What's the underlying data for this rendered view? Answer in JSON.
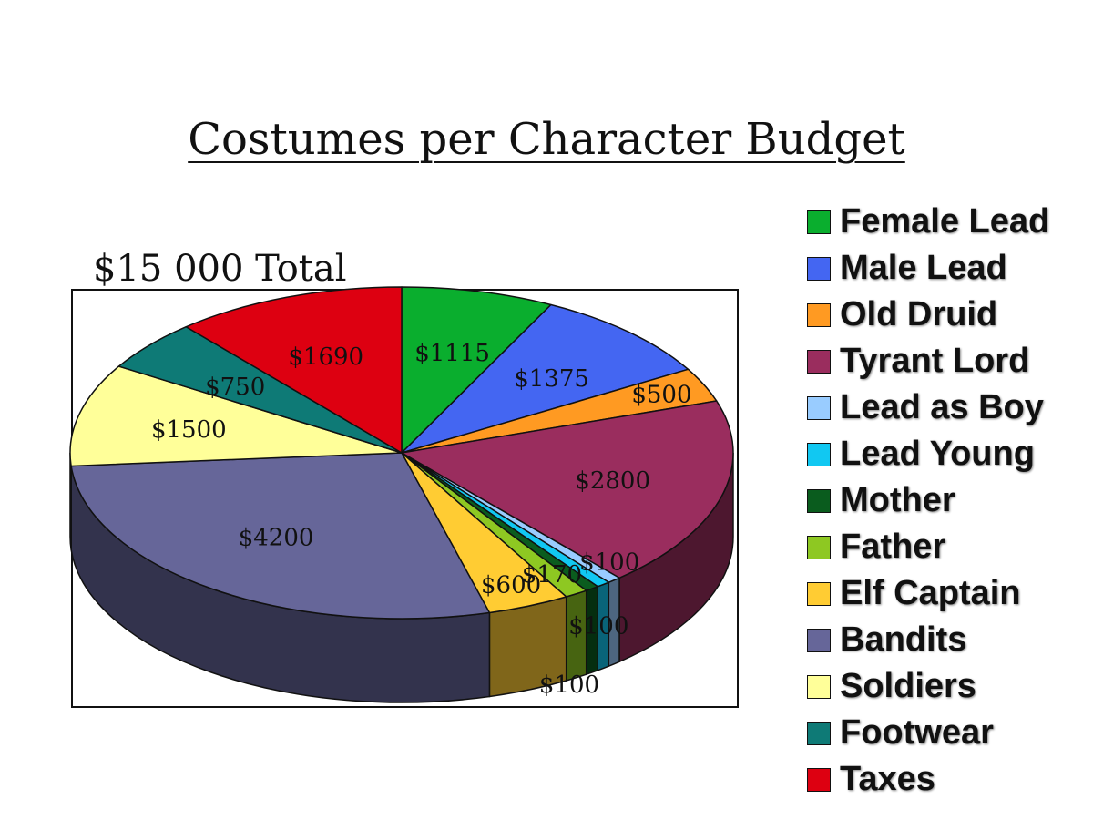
{
  "chart_data": {
    "type": "pie",
    "title": "Costumes per Character Budget",
    "subtitle": "$15 000 Total",
    "legend_position": "right",
    "slices": [
      {
        "name": "Female Lead",
        "value": 1115,
        "label": "$1115",
        "color": "#0aae2e"
      },
      {
        "name": "Male Lead",
        "value": 1375,
        "label": "$1375",
        "color": "#4466f2"
      },
      {
        "name": "Old Druid",
        "value": 500,
        "label": "$500",
        "color": "#ff9a22"
      },
      {
        "name": "Tyrant Lord",
        "value": 2800,
        "label": "$2800",
        "color": "#9a2d5e"
      },
      {
        "name": "Lead as Boy",
        "value": 100,
        "label": "$100",
        "color": "#99ccff"
      },
      {
        "name": "Lead Young",
        "value": 100,
        "label": "$100",
        "color": "#11c8f2"
      },
      {
        "name": "Mother",
        "value": 100,
        "label": "$100",
        "color": "#0a5c1e"
      },
      {
        "name": "Father",
        "value": 170,
        "label": "$170",
        "color": "#8ec822"
      },
      {
        "name": "Elf Captain",
        "value": 600,
        "label": "$600",
        "color": "#ffcc33"
      },
      {
        "name": "Bandits",
        "value": 4200,
        "label": "$4200",
        "color": "#666699"
      },
      {
        "name": "Soldiers",
        "value": 1500,
        "label": "$1500",
        "color": "#ffff99"
      },
      {
        "name": "Footwear",
        "value": 750,
        "label": "$750",
        "color": "#0e7a76"
      },
      {
        "name": "Taxes",
        "value": 1690,
        "label": "$1690",
        "color": "#dd0011"
      }
    ]
  }
}
